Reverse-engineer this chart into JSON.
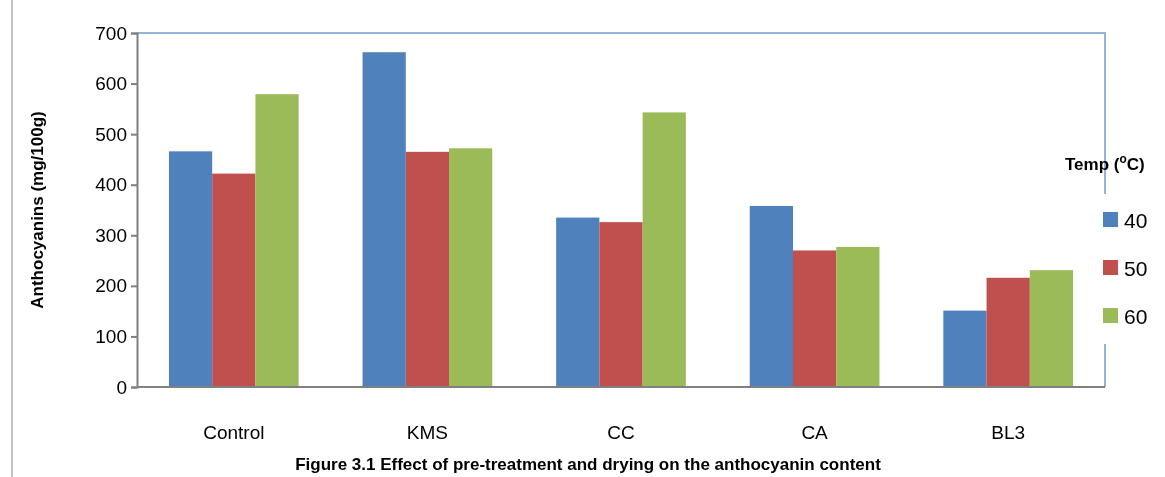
{
  "chart_data": {
    "type": "bar",
    "title": "Figure 3.1 Effect of pre-treatment and drying on the anthocyanin content",
    "ylabel": "Anthocyanins (mg/100g)",
    "legend_title": "Temp ($^{o}$C)",
    "categories": [
      "Control",
      "KMS",
      "CC",
      "CA",
      "BL3"
    ],
    "series": [
      {
        "name": "40",
        "color": "#4f81bd",
        "values": [
          466,
          662,
          335,
          358,
          151
        ]
      },
      {
        "name": "50",
        "color": "#c0504d",
        "values": [
          422,
          465,
          326,
          270,
          216
        ]
      },
      {
        "name": "60",
        "color": "#9bbb59",
        "values": [
          579,
          472,
          543,
          277,
          231
        ]
      }
    ],
    "ylim": [
      0,
      700
    ],
    "yticks": [
      0,
      100,
      200,
      300,
      400,
      500,
      600,
      700
    ],
    "grid": false,
    "legend": "right"
  }
}
